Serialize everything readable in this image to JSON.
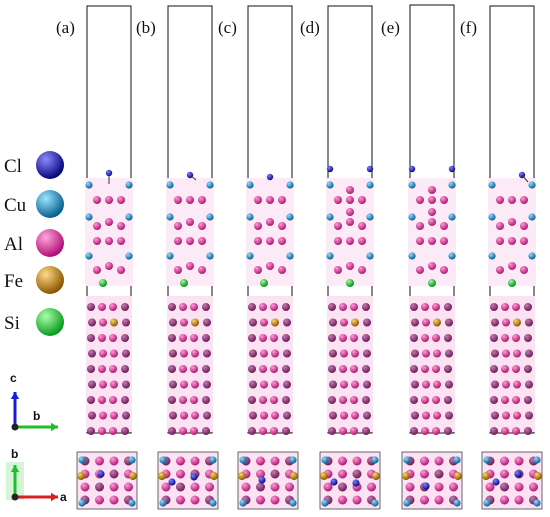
{
  "panels": [
    {
      "label": "(a)",
      "variant": "a"
    },
    {
      "label": "(b)",
      "variant": "b"
    },
    {
      "label": "(c)",
      "variant": "c"
    },
    {
      "label": "(d)",
      "variant": "d"
    },
    {
      "label": "(e)",
      "variant": "e"
    },
    {
      "label": "(f)",
      "variant": "f"
    }
  ],
  "legend": [
    {
      "symbol": "Cl",
      "color": "#2a2ad6",
      "name": "chlorine-atom"
    },
    {
      "symbol": "Cu",
      "color": "#1f9bd6",
      "name": "copper-atom"
    },
    {
      "symbol": "Al",
      "color": "#e83aa8",
      "name": "aluminum-atom"
    },
    {
      "symbol": "Fe",
      "color": "#d6940f",
      "name": "iron-atom"
    },
    {
      "symbol": "Si",
      "color": "#2bd44a",
      "name": "silicon-atom"
    }
  ],
  "axes": {
    "side": {
      "vertical": "c",
      "horizontal": "b"
    },
    "top": {
      "vertical": "b",
      "horizontal": "a"
    },
    "colors": {
      "c": "#1a1adf",
      "b_green": "#1fbf2a",
      "b_top": "#1fbf2a",
      "a": "#d42020"
    }
  }
}
